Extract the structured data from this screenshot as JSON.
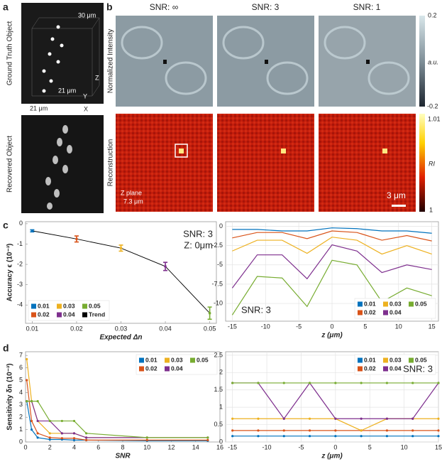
{
  "panel_labels": [
    "a",
    "b",
    "c",
    "d"
  ],
  "panel_a": {
    "row_labels": [
      "Ground Truth Object",
      "Recovered Object"
    ],
    "axis_texts": [
      "30 μm",
      "21 μm",
      "21 μm",
      "X",
      "Y",
      "Z"
    ]
  },
  "panel_b": {
    "columns": [
      "SNR: ∞",
      "SNR: 3",
      "SNR: 1"
    ],
    "row_labels": [
      "Normalized Intensity",
      "Reconstruction"
    ],
    "colorbar_top": {
      "ticks": [
        0.2,
        -0.2
      ],
      "unit": "a.u."
    },
    "colorbar_bottom": {
      "ticks": [
        1.01,
        1
      ],
      "unit": "RI"
    },
    "annotations": [
      "Z plane",
      "7.3 μm"
    ],
    "scale_bar": "3 μm"
  },
  "chart_data": [
    {
      "type": "errorbar",
      "xlabel": "Expected Δn",
      "ylabel": "Accuracy ϵ (10⁻³)",
      "xlim": [
        0.0085,
        0.0515
      ],
      "xticks": [
        0.01,
        0.02,
        0.03,
        0.04,
        0.05
      ],
      "ylim": [
        -4.9,
        0.1
      ],
      "yticks": [
        0,
        -1,
        -2,
        -3,
        -4
      ],
      "legend": "lower left",
      "annotations": [
        "SNR: 3",
        "Z: 0μm"
      ],
      "series": [
        {
          "name": "0.01",
          "color": "#0072bd",
          "x": [
            0.01
          ],
          "values": [
            -0.35
          ],
          "errors": [
            0.05
          ]
        },
        {
          "name": "0.02",
          "color": "#d95319",
          "x": [
            0.02
          ],
          "values": [
            -0.75
          ],
          "errors": [
            0.15
          ]
        },
        {
          "name": "0.03",
          "color": "#edb120",
          "x": [
            0.03
          ],
          "values": [
            -1.2
          ],
          "errors": [
            0.15
          ]
        },
        {
          "name": "0.04",
          "color": "#7e2f8e",
          "x": [
            0.04
          ],
          "values": [
            -2.1
          ],
          "errors": [
            0.2
          ]
        },
        {
          "name": "0.05",
          "color": "#77ac30",
          "x": [
            0.05
          ],
          "values": [
            -4.4
          ],
          "errors": [
            0.3
          ]
        }
      ],
      "trend": {
        "name": "Trend",
        "color": "#000000",
        "x": [
          0.01,
          0.02,
          0.03,
          0.04,
          0.05
        ],
        "values": [
          -0.35,
          -0.75,
          -1.2,
          -2.1,
          -4.4
        ]
      }
    },
    {
      "type": "line",
      "xlabel": "z (μm)",
      "xlim": [
        -16,
        16
      ],
      "xticks": [
        -15,
        -10,
        -5,
        0,
        5,
        10,
        15
      ],
      "ylim": [
        -12.3,
        0.6
      ],
      "yticks": [
        0,
        -2.5,
        -5,
        -7.5,
        -10
      ],
      "grid": true,
      "markers": false,
      "legend": "lower right",
      "annotations": [
        "SNR: 3"
      ],
      "x": [
        -15,
        -11.25,
        -7.5,
        -3.75,
        0,
        3.75,
        7.5,
        11.25,
        15
      ],
      "series": [
        {
          "name": "0.01",
          "color": "#0072bd",
          "values": [
            -0.4,
            -0.4,
            -0.6,
            -0.6,
            -0.2,
            -0.3,
            -0.6,
            -0.6,
            -0.9
          ]
        },
        {
          "name": "0.02",
          "color": "#d95319",
          "values": [
            -1.5,
            -0.8,
            -0.8,
            -1.6,
            -0.6,
            -0.8,
            -1.8,
            -1.2,
            -1.9
          ]
        },
        {
          "name": "0.03",
          "color": "#edb120",
          "values": [
            -3.2,
            -1.8,
            -1.8,
            -3.5,
            -1.4,
            -1.8,
            -3.6,
            -2.5,
            -3.6
          ]
        },
        {
          "name": "0.04",
          "color": "#7e2f8e",
          "values": [
            -8.0,
            -3.7,
            -3.7,
            -6.8,
            -2.4,
            -3.2,
            -6.0,
            -5.0,
            -5.6
          ]
        },
        {
          "name": "0.05",
          "color": "#77ac30",
          "values": [
            -11.5,
            -6.5,
            -6.7,
            -10.4,
            -4.4,
            -5.0,
            -9.8,
            -8.0,
            -9.0
          ]
        }
      ]
    },
    {
      "type": "line",
      "xlabel": "SNR",
      "ylabel": "Sensitivity δn (10⁻³)",
      "xlim": [
        0,
        16
      ],
      "xticks": [
        0,
        2,
        4,
        6,
        8,
        10,
        12,
        14,
        16
      ],
      "ylim": [
        0,
        7.3
      ],
      "yticks": [
        0,
        1,
        2,
        3,
        4,
        5,
        6,
        7
      ],
      "grid": false,
      "markers": true,
      "legend": "upper right",
      "x": [
        0.1,
        0.5,
        1,
        2,
        3,
        4,
        5,
        10,
        15
      ],
      "series": [
        {
          "name": "0.01",
          "color": "#0072bd",
          "values": [
            3.3,
            1.0,
            0.35,
            0.2,
            0.2,
            0.15,
            0.15,
            0.1,
            0.1
          ]
        },
        {
          "name": "0.02",
          "color": "#d95319",
          "values": [
            5.0,
            1.7,
            0.7,
            0.35,
            0.3,
            0.3,
            0.15,
            0.15,
            0.15
          ]
        },
        {
          "name": "0.03",
          "color": "#edb120",
          "values": [
            6.7,
            3.3,
            1.7,
            0.7,
            0.7,
            0.7,
            0.35,
            0.35,
            0.35
          ]
        },
        {
          "name": "0.04",
          "color": "#7e2f8e",
          "values": [
            3.3,
            3.3,
            1.7,
            1.7,
            0.7,
            0.7,
            0.35,
            0.35,
            0.35
          ]
        },
        {
          "name": "0.05",
          "color": "#77ac30",
          "values": [
            3.3,
            3.3,
            3.3,
            1.7,
            1.7,
            1.7,
            0.7,
            0.35,
            0.35
          ]
        }
      ]
    },
    {
      "type": "line",
      "xlabel": "z (μm)",
      "xlim": [
        -16,
        15
      ],
      "xticks": [
        -15,
        -10,
        -5,
        0,
        5,
        10,
        15
      ],
      "ylim": [
        0,
        2.6
      ],
      "yticks": [
        0,
        0.5,
        1,
        1.5,
        2,
        2.5
      ],
      "grid": true,
      "markers": true,
      "legend": "upper right",
      "annotations": [
        "SNR: 3"
      ],
      "x": [
        -15,
        -11.25,
        -7.5,
        -3.75,
        0,
        3.75,
        7.5,
        11.25,
        15
      ],
      "series": [
        {
          "name": "0.01",
          "color": "#0072bd",
          "values": [
            0.17,
            0.17,
            0.17,
            0.17,
            0.17,
            0.17,
            0.17,
            0.17,
            0.17
          ]
        },
        {
          "name": "0.02",
          "color": "#d95319",
          "values": [
            0.33,
            0.33,
            0.33,
            0.33,
            0.33,
            0.33,
            0.33,
            0.33,
            0.33
          ]
        },
        {
          "name": "0.03",
          "color": "#edb120",
          "values": [
            0.67,
            0.67,
            0.67,
            0.67,
            0.67,
            0.33,
            0.67,
            0.67,
            0.67
          ]
        },
        {
          "name": "0.04",
          "color": "#7e2f8e",
          "values": [
            1.7,
            1.7,
            0.67,
            1.7,
            0.67,
            0.67,
            0.67,
            0.67,
            1.7
          ]
        },
        {
          "name": "0.05",
          "color": "#77ac30",
          "values": [
            1.7,
            1.7,
            1.7,
            1.7,
            1.7,
            1.7,
            1.7,
            1.7,
            1.7
          ]
        }
      ]
    }
  ]
}
